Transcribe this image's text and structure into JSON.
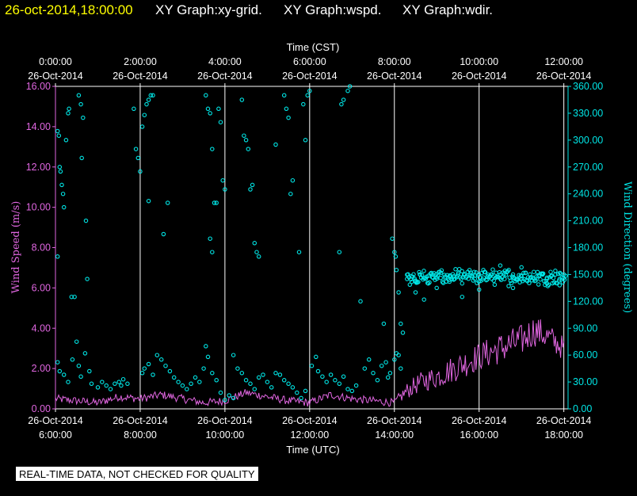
{
  "header": {
    "timestamp": "26-oct-2014,18:00:00",
    "titles": [
      "XY Graph:xy-grid.",
      "XY Graph:wspd.",
      "XY Graph:wdir."
    ]
  },
  "disclaimer": "REAL-TIME DATA, NOT CHECKED FOR QUALITY",
  "colors": {
    "speed": "#e066e0",
    "direction": "#00e6e6",
    "grid": "#ffffff",
    "background": "#000000",
    "timestamp": "#ffff00"
  },
  "chart_data": {
    "type": "scatter",
    "x_unit": "hours UTC on 26-Oct-2014",
    "xlim": [
      6,
      18.1
    ],
    "x_bottom": {
      "label": "Time (UTC)",
      "ticks": [
        {
          "x": 6,
          "date": "26-Oct-2014",
          "time": "6:00:00"
        },
        {
          "x": 8,
          "date": "26-Oct-2014",
          "time": "8:00:00"
        },
        {
          "x": 10,
          "date": "26-Oct-2014",
          "time": "10:00:00"
        },
        {
          "x": 12,
          "date": "26-Oct-2014",
          "time": "12:00:00"
        },
        {
          "x": 14,
          "date": "26-Oct-2014",
          "time": "14:00:00"
        },
        {
          "x": 16,
          "date": "26-Oct-2014",
          "time": "16:00:00"
        },
        {
          "x": 18,
          "date": "26-Oct-2014",
          "time": "18:00:00"
        }
      ]
    },
    "x_top": {
      "label": "Time (CST)",
      "ticks": [
        {
          "x": 6,
          "time": "0:00:00",
          "date": "26-Oct-2014"
        },
        {
          "x": 8,
          "time": "2:00:00",
          "date": "26-Oct-2014"
        },
        {
          "x": 10,
          "time": "4:00:00",
          "date": "26-Oct-2014"
        },
        {
          "x": 12,
          "time": "6:00:00",
          "date": "26-Oct-2014"
        },
        {
          "x": 14,
          "time": "8:00:00",
          "date": "26-Oct-2014"
        },
        {
          "x": 16,
          "time": "10:00:00",
          "date": "26-Oct-2014"
        },
        {
          "x": 18,
          "time": "12:00:00",
          "date": "26-Oct-2014"
        }
      ]
    },
    "y_left": {
      "label": "Wind Speed (m/s)",
      "ylim": [
        0,
        16
      ],
      "ticks": [
        "0.00",
        "2.00",
        "4.00",
        "6.00",
        "8.00",
        "10.00",
        "12.00",
        "14.00",
        "16.00"
      ]
    },
    "y_right": {
      "label": "Wind Direction (degrees)",
      "ylim": [
        0,
        360
      ],
      "ticks": [
        "0.00",
        "30.00",
        "60.00",
        "90.00",
        "120.00",
        "150.00",
        "180.00",
        "210.00",
        "240.00",
        "270.00",
        "300.00",
        "330.00",
        "360.00"
      ]
    },
    "grid_x": [
      8,
      10,
      12,
      14,
      16,
      18
    ],
    "series": [
      {
        "name": "wspd",
        "type": "line",
        "axis": "left",
        "x": [
          6.0,
          6.5,
          7.0,
          7.5,
          8.0,
          8.5,
          9.0,
          9.5,
          10.0,
          10.5,
          11.0,
          11.5,
          12.0,
          12.5,
          13.0,
          13.5,
          14.0,
          14.3,
          14.6,
          15.0,
          15.5,
          16.0,
          16.5,
          17.0,
          17.3,
          17.6,
          18.0
        ],
        "y": [
          0.5,
          0.4,
          0.3,
          0.6,
          0.5,
          0.7,
          0.5,
          0.3,
          0.4,
          0.8,
          0.6,
          0.4,
          0.3,
          0.7,
          0.5,
          0.4,
          0.3,
          0.9,
          1.3,
          1.6,
          2.1,
          2.6,
          3.0,
          3.4,
          3.9,
          3.6,
          3.0
        ],
        "noise_amp": [
          0.2,
          0.2,
          0.2,
          0.2,
          0.2,
          0.2,
          0.2,
          0.2,
          0.2,
          0.2,
          0.2,
          0.2,
          0.2,
          0.2,
          0.2,
          0.2,
          0.2,
          0.4,
          0.5,
          0.6,
          0.7,
          0.7,
          0.8,
          0.8,
          0.8,
          0.7,
          0.6
        ]
      },
      {
        "name": "wdir",
        "type": "scatter",
        "axis": "right",
        "points": [
          [
            6.05,
            310
          ],
          [
            6.08,
            305
          ],
          [
            6.1,
            270
          ],
          [
            6.12,
            265
          ],
          [
            6.15,
            250
          ],
          [
            6.18,
            240
          ],
          [
            6.2,
            225
          ],
          [
            6.25,
            300
          ],
          [
            6.3,
            330
          ],
          [
            6.32,
            335
          ],
          [
            6.38,
            125
          ],
          [
            6.45,
            125
          ],
          [
            6.05,
            170
          ],
          [
            6.55,
            350
          ],
          [
            6.6,
            340
          ],
          [
            6.62,
            280
          ],
          [
            6.65,
            325
          ],
          [
            6.72,
            210
          ],
          [
            6.75,
            145
          ],
          [
            6.05,
            52
          ],
          [
            6.1,
            42
          ],
          [
            6.2,
            38
          ],
          [
            6.3,
            30
          ],
          [
            6.4,
            55
          ],
          [
            6.5,
            75
          ],
          [
            6.55,
            48
          ],
          [
            6.6,
            36
          ],
          [
            6.7,
            62
          ],
          [
            6.8,
            42
          ],
          [
            6.85,
            28
          ],
          [
            7.0,
            24
          ],
          [
            7.1,
            30
          ],
          [
            7.2,
            26
          ],
          [
            7.3,
            22
          ],
          [
            7.4,
            28
          ],
          [
            7.5,
            30
          ],
          [
            7.55,
            26
          ],
          [
            7.6,
            33
          ],
          [
            7.7,
            28
          ],
          [
            7.85,
            335
          ],
          [
            7.9,
            290
          ],
          [
            7.95,
            280
          ],
          [
            8.0,
            265
          ],
          [
            8.05,
            315
          ],
          [
            8.1,
            328
          ],
          [
            8.15,
            340
          ],
          [
            8.2,
            345
          ],
          [
            8.25,
            350
          ],
          [
            8.3,
            350
          ],
          [
            8.2,
            232
          ],
          [
            8.55,
            195
          ],
          [
            8.65,
            230
          ],
          [
            8.05,
            40
          ],
          [
            8.1,
            45
          ],
          [
            8.2,
            50
          ],
          [
            8.3,
            38
          ],
          [
            8.4,
            60
          ],
          [
            8.5,
            55
          ],
          [
            8.6,
            48
          ],
          [
            8.7,
            42
          ],
          [
            8.8,
            35
          ],
          [
            8.9,
            30
          ],
          [
            9.0,
            26
          ],
          [
            9.1,
            22
          ],
          [
            9.2,
            28
          ],
          [
            9.3,
            35
          ],
          [
            9.4,
            30
          ],
          [
            9.55,
            350
          ],
          [
            9.6,
            335
          ],
          [
            9.65,
            330
          ],
          [
            9.7,
            290
          ],
          [
            9.75,
            230
          ],
          [
            9.8,
            230
          ],
          [
            9.85,
            335
          ],
          [
            9.9,
            320
          ],
          [
            9.95,
            255
          ],
          [
            10.0,
            245
          ],
          [
            9.65,
            190
          ],
          [
            9.7,
            175
          ],
          [
            9.55,
            70
          ],
          [
            9.6,
            58
          ],
          [
            9.5,
            45
          ],
          [
            9.7,
            40
          ],
          [
            9.8,
            32
          ],
          [
            9.9,
            18
          ],
          [
            10.0,
            10
          ],
          [
            10.1,
            15
          ],
          [
            10.2,
            12
          ],
          [
            10.4,
            345
          ],
          [
            10.45,
            305
          ],
          [
            10.5,
            300
          ],
          [
            10.55,
            290
          ],
          [
            10.6,
            245
          ],
          [
            10.65,
            250
          ],
          [
            10.7,
            185
          ],
          [
            10.75,
            175
          ],
          [
            10.8,
            170
          ],
          [
            10.2,
            60
          ],
          [
            10.3,
            45
          ],
          [
            10.4,
            40
          ],
          [
            10.5,
            32
          ],
          [
            10.6,
            28
          ],
          [
            10.7,
            22
          ],
          [
            10.8,
            35
          ],
          [
            10.9,
            38
          ],
          [
            11.0,
            30
          ],
          [
            11.1,
            24
          ],
          [
            11.2,
            295
          ],
          [
            11.4,
            350
          ],
          [
            11.45,
            335
          ],
          [
            11.5,
            325
          ],
          [
            11.55,
            240
          ],
          [
            11.6,
            255
          ],
          [
            11.75,
            175
          ],
          [
            11.85,
            340
          ],
          [
            11.9,
            300
          ],
          [
            11.95,
            350
          ],
          [
            12.0,
            355
          ],
          [
            11.2,
            40
          ],
          [
            11.3,
            38
          ],
          [
            11.4,
            32
          ],
          [
            11.5,
            28
          ],
          [
            11.6,
            24
          ],
          [
            11.7,
            18
          ],
          [
            11.8,
            12
          ],
          [
            11.9,
            20
          ],
          [
            12.05,
            48
          ],
          [
            12.15,
            58
          ],
          [
            12.2,
            42
          ],
          [
            12.3,
            36
          ],
          [
            12.4,
            30
          ],
          [
            12.5,
            38
          ],
          [
            12.6,
            32
          ],
          [
            12.7,
            28
          ],
          [
            12.8,
            36
          ],
          [
            12.9,
            22
          ],
          [
            13.0,
            20
          ],
          [
            13.1,
            26
          ],
          [
            12.7,
            175
          ],
          [
            12.75,
            340
          ],
          [
            12.8,
            345
          ],
          [
            12.9,
            355
          ],
          [
            12.95,
            360
          ],
          [
            13.2,
            120
          ],
          [
            13.3,
            45
          ],
          [
            13.4,
            55
          ],
          [
            13.5,
            40
          ],
          [
            13.6,
            32
          ],
          [
            13.7,
            48
          ],
          [
            13.8,
            52
          ],
          [
            13.85,
            35
          ],
          [
            13.9,
            40
          ],
          [
            14.0,
            55
          ],
          [
            13.75,
            95
          ],
          [
            13.95,
            190
          ],
          [
            14.0,
            175
          ],
          [
            14.03,
            170
          ],
          [
            14.05,
            155
          ],
          [
            14.1,
            130
          ],
          [
            14.15,
            95
          ],
          [
            14.2,
            85
          ],
          [
            14.1,
            60
          ],
          [
            14.15,
            45
          ],
          [
            14.05,
            62
          ],
          [
            14.3,
            145
          ],
          [
            14.4,
            148
          ],
          [
            14.5,
            142
          ],
          [
            14.6,
            150
          ],
          [
            14.7,
            146
          ],
          [
            14.8,
            140
          ],
          [
            14.9,
            150
          ],
          [
            15.0,
            147
          ],
          [
            15.1,
            152
          ],
          [
            15.2,
            146
          ],
          [
            15.3,
            142
          ],
          [
            15.4,
            148
          ],
          [
            15.5,
            150
          ],
          [
            15.6,
            140
          ],
          [
            15.7,
            148
          ],
          [
            15.8,
            152
          ],
          [
            15.9,
            145
          ],
          [
            16.0,
            150
          ],
          [
            16.1,
            155
          ],
          [
            16.2,
            148
          ],
          [
            16.3,
            145
          ],
          [
            16.4,
            152
          ],
          [
            16.5,
            150
          ],
          [
            16.6,
            145
          ],
          [
            16.7,
            155
          ],
          [
            16.8,
            150
          ],
          [
            16.9,
            145
          ],
          [
            17.0,
            148
          ],
          [
            17.1,
            152
          ],
          [
            17.2,
            150
          ],
          [
            17.3,
            145
          ],
          [
            17.4,
            148
          ],
          [
            17.5,
            150
          ],
          [
            17.6,
            145
          ],
          [
            17.7,
            148
          ],
          [
            17.8,
            150
          ],
          [
            17.9,
            145
          ],
          [
            18.0,
            150
          ],
          [
            14.5,
            130
          ],
          [
            14.7,
            122
          ],
          [
            15.0,
            135
          ],
          [
            15.6,
            125
          ],
          [
            16.0,
            133
          ],
          [
            16.8,
            135
          ],
          [
            17.6,
            140
          ],
          [
            17.9,
            138
          ],
          [
            15.3,
            148
          ],
          [
            16.5,
            160
          ],
          [
            17.0,
            158
          ]
        ],
        "fill_range": [
          14.3,
          18.05
        ],
        "fill_center": 147,
        "fill_spread": 10
      }
    ]
  }
}
